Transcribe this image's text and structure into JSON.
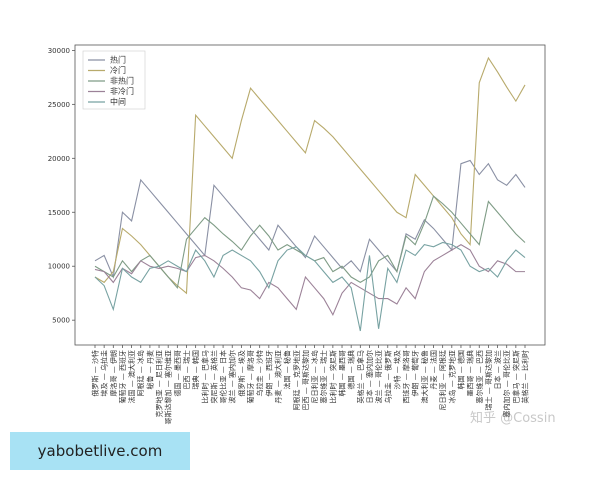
{
  "chart_data": {
    "type": "line",
    "categories": [
      "俄罗斯 — 沙特",
      "埃及 — 乌拉圭",
      "摩洛哥 — 伊朗",
      "葡萄牙 — 西班牙",
      "法国 — 澳大利亚",
      "阿根廷 — 冰岛",
      "秘鲁 — 丹麦",
      "克罗地亚 — 尼日利亚",
      "哥斯达黎加 — 塞尔维亚",
      "德国 — 墨西哥",
      "巴西 — 瑞士",
      "瑞典 — 韩国",
      "比利时 — 巴拿马",
      "突尼斯 — 英格兰",
      "哥伦比亚 — 日本",
      "波兰 — 塞内加尔",
      "俄罗斯 — 埃及",
      "葡萄牙 — 摩洛哥",
      "乌拉圭 — 沙特",
      "伊朗 — 西班牙",
      "丹麦 — 澳大利亚",
      "法国 — 秘鲁",
      "阿根廷 — 克罗地亚",
      "巴西 — 哥斯达黎加",
      "尼日利亚 — 冰岛",
      "塞尔维亚 — 瑞士",
      "比利时 — 突尼斯",
      "韩国 — 墨西哥",
      "德国 — 瑞典",
      "英格兰 — 巴拿马",
      "日本 — 塞内加尔",
      "波兰 — 哥伦比亚",
      "乌拉圭 — 俄罗斯",
      "沙特 — 埃及",
      "西班牙 — 摩洛哥",
      "伊朗 — 葡萄牙",
      "澳大利亚 — 秘鲁",
      "丹麦 — 法国",
      "尼日利亚 — 阿根廷",
      "冰岛 — 克罗地亚",
      "韩国 — 德国",
      "墨西哥 — 瑞典",
      "塞尔维亚 — 巴西",
      "瑞士 — 哥斯达黎加",
      "日本 — 波兰",
      "塞内加尔 — 哥伦比亚",
      "巴拿马 — 突尼斯",
      "英格兰 — 比利时"
    ],
    "series": [
      {
        "name": "热门",
        "color": "#8a90a4",
        "values": [
          10500,
          11000,
          9000,
          15000,
          14200,
          18000,
          17000,
          16000,
          15000,
          14000,
          13000,
          12000,
          11000,
          17500,
          16500,
          15500,
          14500,
          13500,
          12500,
          11500,
          13800,
          12800,
          11800,
          10800,
          12800,
          11800,
          10800,
          9800,
          10500,
          9500,
          12500,
          11500,
          10500,
          9500,
          13000,
          12500,
          14300,
          13500,
          12500,
          11500,
          19500,
          19800,
          18500,
          19500,
          18000,
          17500,
          18500,
          17300
        ]
      },
      {
        "name": "冷门",
        "color": "#b8aa6c",
        "values": [
          9000,
          8500,
          9500,
          13500,
          12800,
          12000,
          11000,
          10000,
          9000,
          8200,
          7500,
          24000,
          23000,
          22000,
          21000,
          20000,
          23500,
          26500,
          25500,
          24500,
          23500,
          22500,
          21500,
          20500,
          23500,
          22800,
          22000,
          21000,
          20000,
          19000,
          18000,
          17000,
          16000,
          15000,
          14500,
          18500,
          17500,
          16500,
          15500,
          14500,
          13000,
          12000,
          27000,
          29300,
          28000,
          26600,
          25300,
          26800
        ]
      },
      {
        "name": "非热门",
        "color": "#7f9c86",
        "values": [
          10000,
          9500,
          9000,
          10500,
          9500,
          10500,
          11000,
          10000,
          9000,
          8000,
          12500,
          13500,
          14500,
          13800,
          13000,
          12300,
          11500,
          12800,
          13800,
          12800,
          11500,
          12000,
          11500,
          11000,
          10500,
          10800,
          9500,
          10000,
          9000,
          8500,
          9000,
          10500,
          11000,
          9500,
          12800,
          12000,
          14000,
          16500,
          15800,
          15000,
          14000,
          13000,
          12000,
          16000,
          15000,
          14000,
          13000,
          12200
        ]
      },
      {
        "name": "非冷门",
        "color": "#9c8298",
        "values": [
          9700,
          9500,
          8500,
          9800,
          9300,
          10500,
          10000,
          9800,
          10000,
          9800,
          9500,
          10800,
          11000,
          10500,
          9800,
          9000,
          8000,
          7800,
          7000,
          8500,
          8000,
          7000,
          6000,
          9000,
          8000,
          7000,
          5500,
          7500,
          8500,
          8000,
          7500,
          7000,
          7000,
          6500,
          8000,
          7000,
          9500,
          10500,
          11000,
          11500,
          12000,
          11500,
          10000,
          9500,
          10500,
          10200,
          9500,
          9500
        ]
      },
      {
        "name": "中间",
        "color": "#78a2a2",
        "values": [
          9000,
          8200,
          6000,
          9800,
          9000,
          8500,
          9800,
          10000,
          10500,
          10000,
          9500,
          11500,
          10500,
          9000,
          11000,
          11500,
          11000,
          10500,
          9500,
          8000,
          10500,
          11500,
          11800,
          11000,
          10500,
          9500,
          8500,
          9000,
          8000,
          4000,
          11000,
          4200,
          9800,
          8500,
          11500,
          11000,
          12000,
          11800,
          12200,
          12000,
          11500,
          10000,
          9500,
          9800,
          9000,
          10500,
          11500,
          10800
        ]
      }
    ],
    "ylim": [
      2700,
      30500
    ],
    "yticks": [
      5000,
      10000,
      15000,
      20000,
      25000,
      30000
    ],
    "legend": "upper-left",
    "watermark": "知乎 @Cossin",
    "site_label": "yabobetlive.com"
  }
}
